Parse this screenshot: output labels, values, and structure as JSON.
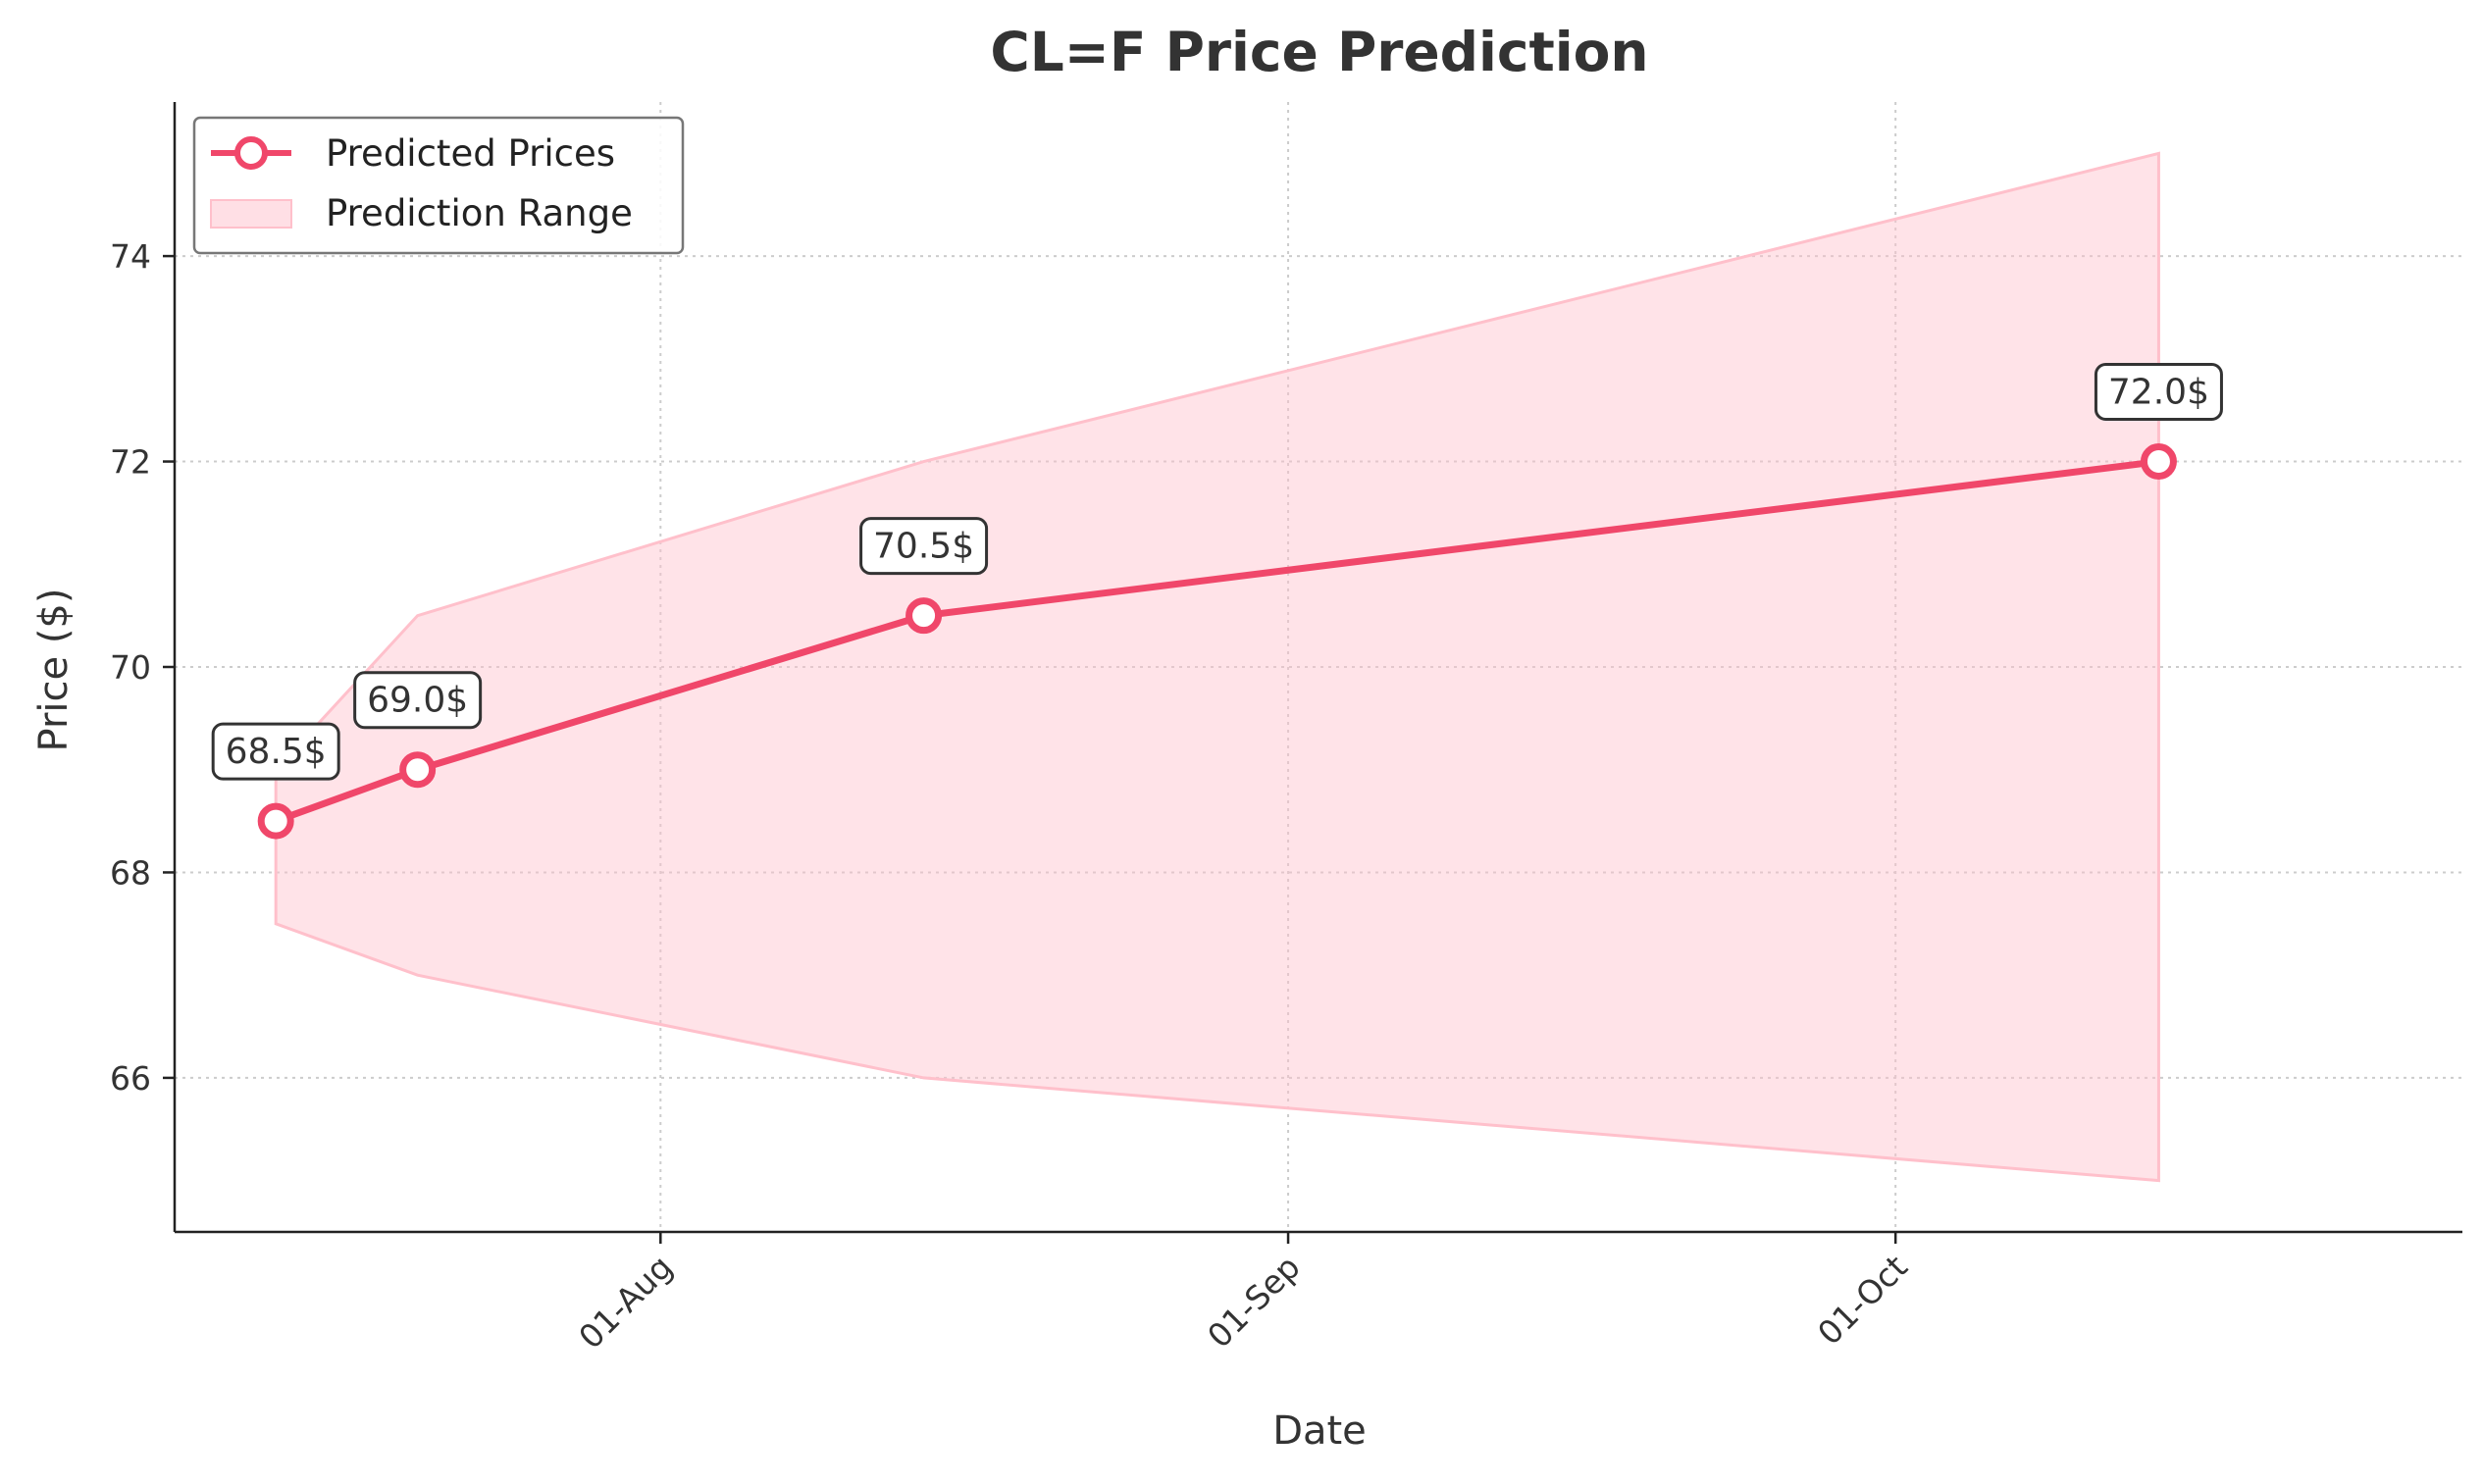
{
  "chart_data": {
    "type": "line",
    "title": "CL=F Price Prediction",
    "xlabel": "Date",
    "ylabel": "Price ($)",
    "xlim": [
      "2024-07-08",
      "2024-10-29"
    ],
    "ylim": [
      64.5,
      75.5
    ],
    "grid": true,
    "legend_position": "top-left",
    "x_ticks": [
      {
        "date": "2024-08-01",
        "label": "01-Aug"
      },
      {
        "date": "2024-09-01",
        "label": "01-Sep"
      },
      {
        "date": "2024-10-01",
        "label": "01-Oct"
      }
    ],
    "y_ticks": [
      66,
      68,
      70,
      72,
      74
    ],
    "series": [
      {
        "name": "Predicted Prices",
        "color": "#f0476a",
        "x": [
          "2024-07-13",
          "2024-07-20",
          "2024-08-14",
          "2024-10-14"
        ],
        "values": [
          68.5,
          69.0,
          70.5,
          72.0
        ],
        "annotations": [
          "68.5$",
          "69.0$",
          "70.5$",
          "72.0$"
        ]
      }
    ],
    "range": {
      "name": "Prediction Range",
      "color": "#ffc0cb",
      "x": [
        "2024-07-13",
        "2024-07-20",
        "2024-08-14",
        "2024-10-14"
      ],
      "lower": [
        67.5,
        67.0,
        66.0,
        65.0
      ],
      "upper": [
        69.0,
        70.5,
        72.0,
        75.0
      ]
    }
  }
}
